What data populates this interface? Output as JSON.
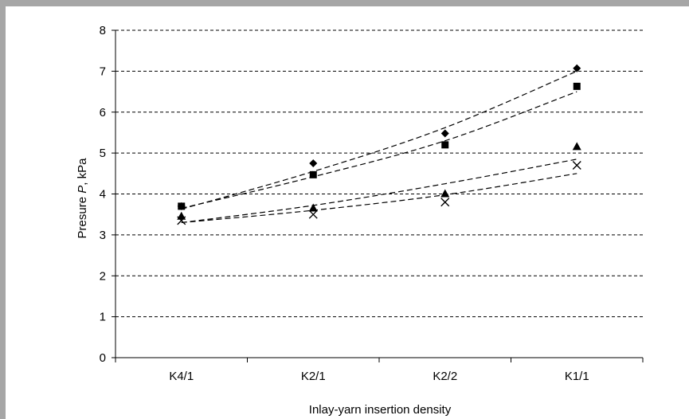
{
  "chart_data": {
    "type": "scatter",
    "categories": [
      "K4/1",
      "K2/1",
      "K2/2",
      "K1/1"
    ],
    "xlabel": "Inlay-yarn insertion density",
    "ylabel_prefix": "Presure ",
    "ylabel_var": "P",
    "ylabel_suffix": ", kPa",
    "ylim": [
      0,
      8
    ],
    "yticks": [
      0,
      1,
      2,
      3,
      4,
      5,
      6,
      7,
      8
    ],
    "grid": true,
    "gridline_style": "dashed",
    "series": [
      {
        "marker": "diamond",
        "values": [
          3.7,
          4.75,
          5.48,
          7.07
        ],
        "trend": [
          3.63,
          4.55,
          5.62,
          7.0
        ]
      },
      {
        "marker": "square",
        "values": [
          3.7,
          4.47,
          5.2,
          6.63
        ],
        "trend": [
          3.65,
          4.42,
          5.3,
          6.5
        ]
      },
      {
        "marker": "triangle",
        "values": [
          3.45,
          3.65,
          4.0,
          5.15
        ],
        "trend": [
          3.3,
          3.72,
          4.25,
          4.85
        ]
      },
      {
        "marker": "cross",
        "values": [
          3.35,
          3.5,
          3.8,
          4.7
        ],
        "trend": [
          3.3,
          3.6,
          3.98,
          4.5
        ]
      }
    ]
  }
}
